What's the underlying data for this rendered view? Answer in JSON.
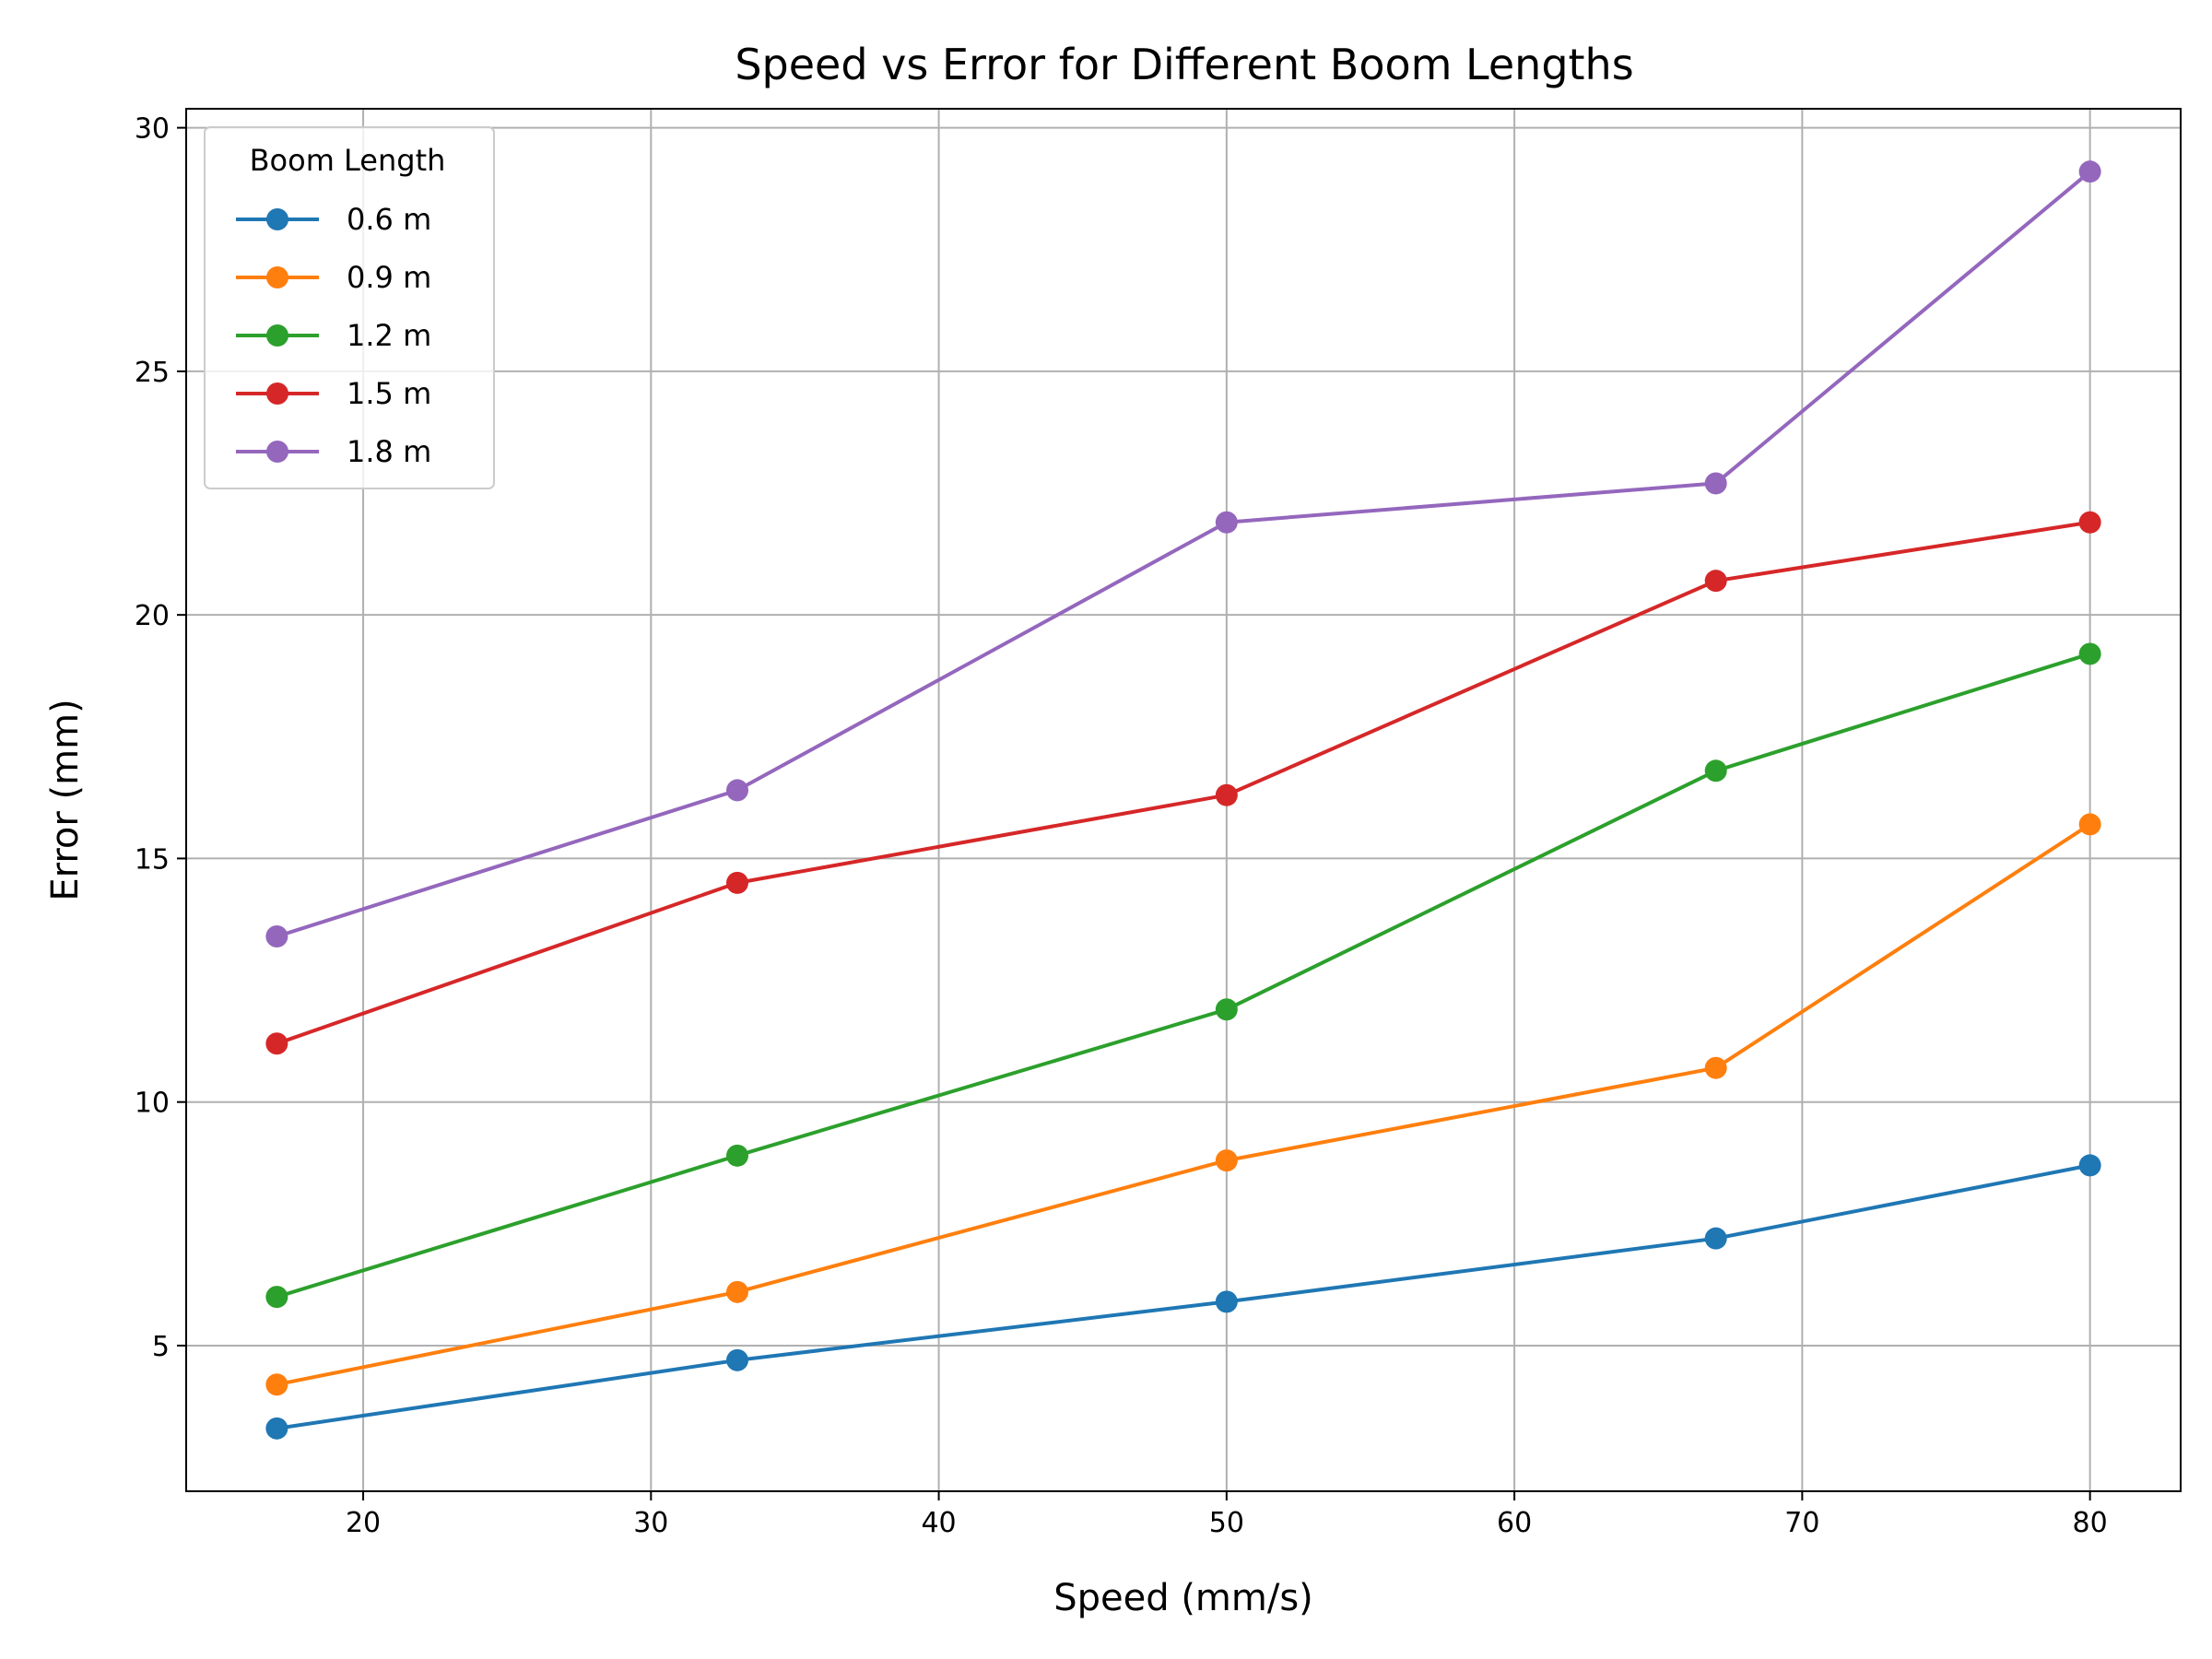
{
  "chart_data": {
    "type": "line",
    "title": "Speed vs Error for Different Boom Lengths",
    "xlabel": "Speed (mm/s)",
    "ylabel": "Error (mm)",
    "x": [
      17,
      33,
      50,
      67,
      80
    ],
    "xlim": [
      13.85,
      83.15
    ],
    "ylim": [
      2.01,
      30.39
    ],
    "xticks": [
      20,
      30,
      40,
      50,
      60,
      70,
      80
    ],
    "yticks": [
      5,
      10,
      15,
      20,
      25,
      30
    ],
    "grid": true,
    "legend": {
      "title": "Boom Length",
      "placement": "upper left"
    },
    "series": [
      {
        "name": "0.6 m",
        "color": "#1f77b4",
        "values": [
          3.3,
          4.7,
          5.9,
          7.2,
          8.7
        ]
      },
      {
        "name": "0.9 m",
        "color": "#ff7f0e",
        "values": [
          4.2,
          6.1,
          8.8,
          10.7,
          15.7
        ]
      },
      {
        "name": "1.2 m",
        "color": "#2ca02c",
        "values": [
          6.0,
          8.9,
          11.9,
          16.8,
          19.2
        ]
      },
      {
        "name": "1.5 m",
        "color": "#d62728",
        "values": [
          11.2,
          14.5,
          16.3,
          20.7,
          21.9
        ]
      },
      {
        "name": "1.8 m",
        "color": "#9467bd",
        "values": [
          13.4,
          16.4,
          21.9,
          22.7,
          29.1
        ]
      }
    ]
  }
}
